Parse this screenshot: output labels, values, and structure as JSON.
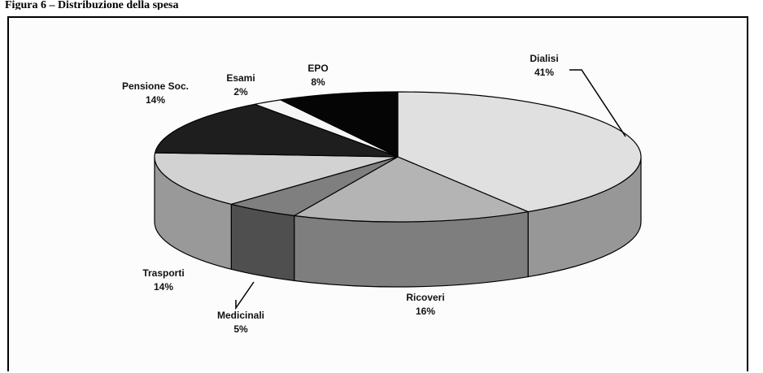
{
  "caption": "Figura 6 – Distribuzione della spesa",
  "chart_data": {
    "type": "pie",
    "title": "",
    "categories": [
      "Dialisi",
      "Ricoveri",
      "Medicinali",
      "Trasporti",
      "Pensione Soc.",
      "Esami",
      "EPO"
    ],
    "values": [
      41,
      16,
      5,
      14,
      14,
      2,
      8
    ],
    "value_labels": [
      "41%",
      "16%",
      "5%",
      "14%",
      "14%",
      "2%",
      "8%"
    ],
    "colors": [
      "#e0e0e0",
      "#b4b4b4",
      "#7f7f7f",
      "#d2d2d2",
      "#1e1e1e",
      "#f6f6f6",
      "#050505"
    ],
    "side_colors": [
      "#979797",
      "#7e7e7e",
      "#4f4f4f",
      "#999999",
      "#111111",
      "#bbbbbb",
      "#000000"
    ],
    "style": "3d-pie",
    "legend": "none"
  }
}
